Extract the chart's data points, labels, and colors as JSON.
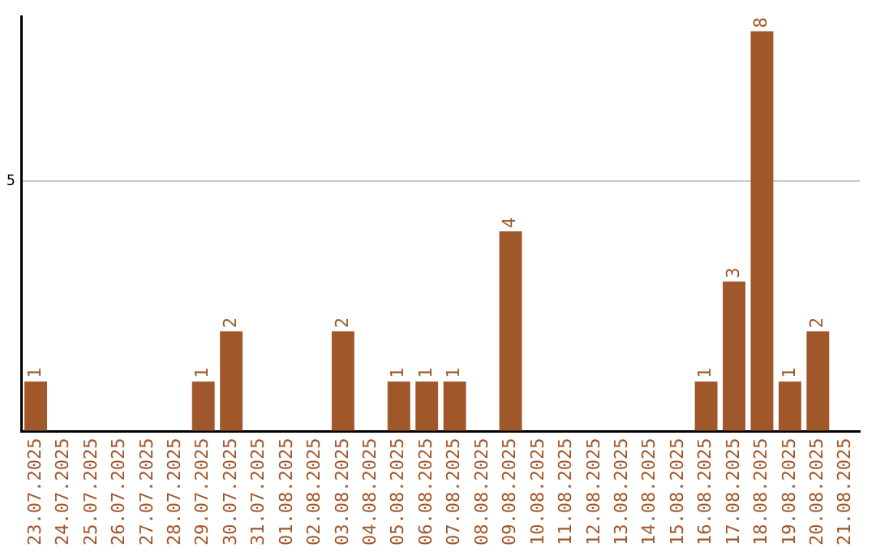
{
  "chart_data": {
    "type": "bar",
    "categories": [
      "23.07.2025",
      "24.07.2025",
      "25.07.2025",
      "26.07.2025",
      "27.07.2025",
      "28.07.2025",
      "29.07.2025",
      "30.07.2025",
      "31.07.2025",
      "01.08.2025",
      "02.08.2025",
      "03.08.2025",
      "04.08.2025",
      "05.08.2025",
      "06.08.2025",
      "07.08.2025",
      "08.08.2025",
      "09.08.2025",
      "10.08.2025",
      "11.08.2025",
      "12.08.2025",
      "13.08.2025",
      "14.08.2025",
      "15.08.2025",
      "16.08.2025",
      "17.08.2025",
      "18.08.2025",
      "19.08.2025",
      "20.08.2025",
      "21.08.2025"
    ],
    "values": [
      1,
      0,
      0,
      0,
      0,
      0,
      1,
      2,
      0,
      0,
      0,
      2,
      0,
      1,
      1,
      1,
      0,
      4,
      0,
      0,
      0,
      0,
      0,
      0,
      1,
      3,
      8,
      1,
      2,
      0
    ],
    "value_labels": [
      "1",
      null,
      null,
      null,
      null,
      null,
      "1",
      "2",
      null,
      null,
      null,
      "2",
      null,
      "1",
      "1",
      "1",
      null,
      "4",
      null,
      null,
      null,
      null,
      null,
      null,
      "1",
      "3",
      "8",
      "1",
      "2",
      null
    ],
    "color": "#a0572a",
    "ylim": [
      0,
      8.3
    ],
    "yticks": [
      {
        "value": 0,
        "label": null
      },
      5
    ],
    "grid": "y",
    "legend": false
  }
}
